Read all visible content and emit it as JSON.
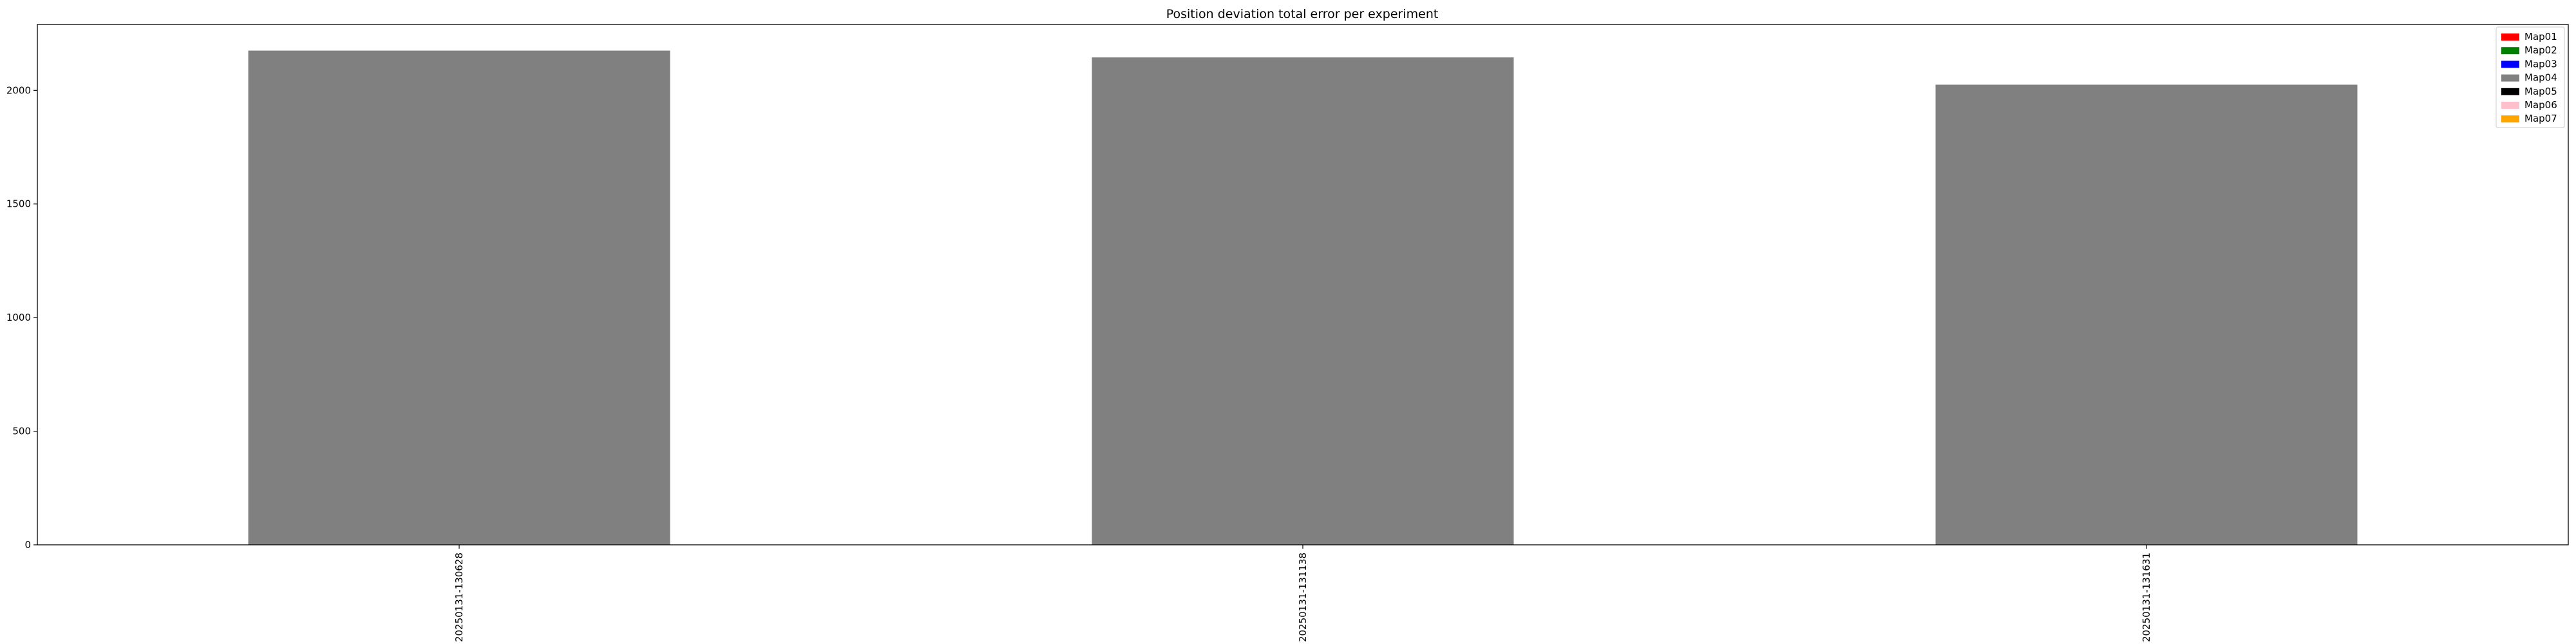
{
  "chart_data": {
    "type": "bar",
    "title": "Position deviation total error per experiment",
    "xlabel": "",
    "ylabel": "",
    "categories": [
      "20250131-130628",
      "20250131-131138",
      "20250131-131631"
    ],
    "series": [
      {
        "name": "Map04",
        "values": [
          2175,
          2145,
          2025
        ],
        "color": "#808080"
      }
    ],
    "ylim": [
      0,
      2290
    ],
    "yticks": [
      0,
      500,
      1000,
      1500,
      2000
    ],
    "grid": false,
    "legend": {
      "placement": "top-right",
      "entries": [
        {
          "label": "Map01",
          "color": "#ff0000"
        },
        {
          "label": "Map02",
          "color": "#008000"
        },
        {
          "label": "Map03",
          "color": "#0000ff"
        },
        {
          "label": "Map04",
          "color": "#808080"
        },
        {
          "label": "Map05",
          "color": "#000000"
        },
        {
          "label": "Map06",
          "color": "#ffc0cb"
        },
        {
          "label": "Map07",
          "color": "#ffa500"
        }
      ]
    }
  }
}
